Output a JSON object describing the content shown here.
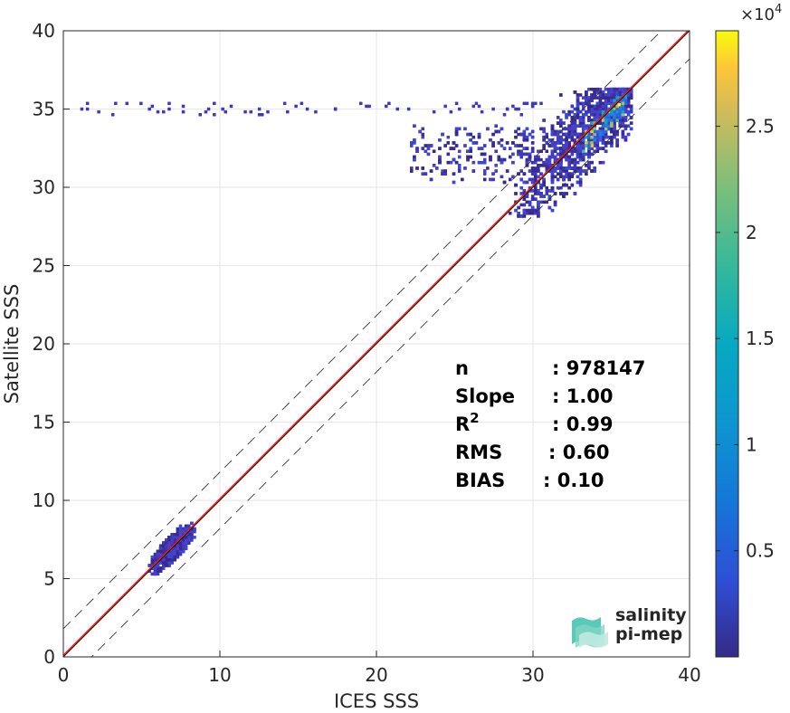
{
  "chart_data": {
    "type": "scatter",
    "subtype": "2d-density-histogram",
    "title": "",
    "xlabel": "ICES SSS",
    "ylabel": "Satellite SSS",
    "xlim": [
      0,
      40
    ],
    "ylim": [
      0,
      40
    ],
    "xticks": [
      "0",
      "10",
      "20",
      "30",
      "40"
    ],
    "yticks": [
      "0",
      "5",
      "10",
      "15",
      "20",
      "25",
      "30",
      "35",
      "40"
    ],
    "grid": true,
    "colorbar": {
      "colormap": "parula",
      "range": [
        0,
        29500
      ],
      "ticks": [
        5000,
        10000,
        15000,
        20000,
        25000
      ],
      "tick_labels": [
        "0.5",
        "1",
        "1.5",
        "2",
        "2.5"
      ],
      "exponent_label": "×10",
      "exponent": "4"
    },
    "lines": [
      {
        "name": "identity",
        "style": "solid",
        "color": "#000000",
        "x": [
          0,
          40
        ],
        "y": [
          0,
          40
        ]
      },
      {
        "name": "regression",
        "style": "solid",
        "color": "#e41a1c",
        "x": [
          0,
          40
        ],
        "y": [
          0.1,
          40.1
        ]
      },
      {
        "name": "upper-bound",
        "style": "dashed",
        "color": "#333333",
        "x": [
          0,
          40
        ],
        "y": [
          1.8,
          41.8
        ]
      },
      {
        "name": "lower-bound",
        "style": "dashed",
        "color": "#333333",
        "x": [
          0,
          40
        ],
        "y": [
          -1.8,
          38.2
        ]
      }
    ],
    "clusters": [
      {
        "name": "low-salinity",
        "x_range": [
          5.2,
          8.5
        ],
        "y_range": [
          5.2,
          8.5
        ],
        "center": [
          7.0,
          7.0
        ]
      },
      {
        "name": "high-salinity",
        "x_range": [
          28.5,
          36.2
        ],
        "y_range": [
          28.0,
          36.0
        ],
        "center": [
          33.5,
          33.5
        ],
        "peak": [
          35.4,
          35.2
        ]
      }
    ],
    "stats": [
      {
        "label": "n",
        "sep": ": ",
        "value": "978147"
      },
      {
        "label": "Slope",
        "sep": ": ",
        "value": "1.00"
      },
      {
        "label": "R",
        "sup": "2",
        "sep": ": ",
        "value": "0.99"
      },
      {
        "label": "RMS",
        "sep": ": ",
        "value": "0.60"
      },
      {
        "label": "BIAS",
        "sep": ": ",
        "value": "0.10"
      }
    ]
  },
  "logo": {
    "line1": "salinity",
    "line2": "pi-mep",
    "colors": {
      "text1": "#14b3a6",
      "text2": "#0a5a60",
      "wave": "#3cc0ae"
    }
  }
}
